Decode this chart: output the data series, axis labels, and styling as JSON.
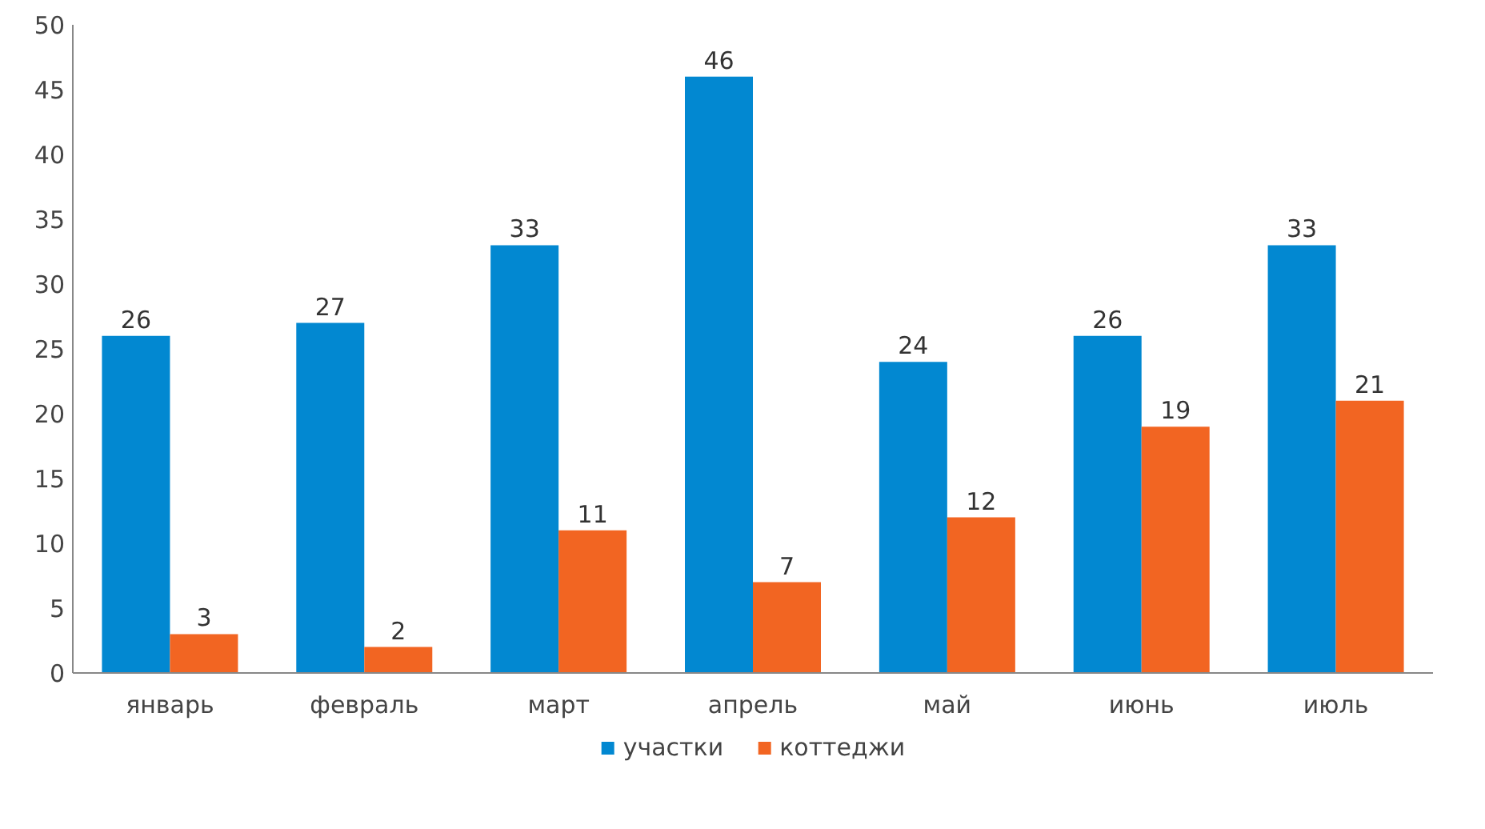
{
  "chart_data": {
    "type": "bar",
    "categories": [
      "январь",
      "февраль",
      "март",
      "апрель",
      "май",
      "июнь",
      "июль"
    ],
    "series": [
      {
        "name": "участки",
        "color": "#0288d1",
        "values": [
          26,
          27,
          33,
          46,
          24,
          26,
          33
        ]
      },
      {
        "name": "коттеджи",
        "color": "#f26522",
        "values": [
          3,
          2,
          11,
          7,
          12,
          19,
          21
        ]
      }
    ],
    "ylim": [
      0,
      50
    ],
    "yticks": [
      0,
      5,
      10,
      15,
      20,
      25,
      30,
      35,
      40,
      45,
      50
    ],
    "grid": false,
    "legend": "bottom",
    "data_labels": true
  }
}
